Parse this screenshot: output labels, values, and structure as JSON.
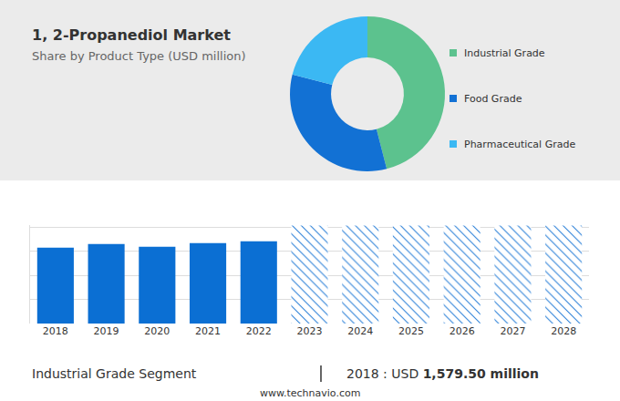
{
  "title": "1, 2-Propanediol Market",
  "subtitle": "Share by Product Type (USD million)",
  "chart_data": [
    {
      "type": "donut",
      "categories": [
        "Industrial Grade",
        "Food Grade",
        "Pharmaceutical Grade"
      ],
      "values": [
        46,
        33,
        21
      ],
      "colors": [
        "#5cc28e",
        "#1271d4",
        "#3bb8f3"
      ]
    },
    {
      "type": "bar",
      "categories": [
        "2018",
        "2019",
        "2020",
        "2021",
        "2022",
        "2023",
        "2024",
        "2025",
        "2026",
        "2027",
        "2028"
      ],
      "series": [
        {
          "color": "#0b6fd3",
          "values": [
            1579.5,
            1656,
            1598,
            1675,
            1713,
            null,
            null,
            null,
            null,
            null,
            null
          ]
        },
        {
          "color": "#2a7fd8",
          "marker": "hatched",
          "values": [
            null,
            null,
            null,
            null,
            null,
            2040,
            2040,
            2040,
            2040,
            2040,
            2040
          ]
        }
      ],
      "ylim": [
        0,
        2050
      ],
      "yticks": [
        0,
        500,
        1000,
        1500,
        2000
      ],
      "grid": true,
      "tick_labels": "x"
    }
  ],
  "footer": {
    "segment": "Industrial Grade Segment",
    "year_label": "2018 : USD",
    "value": "1,579.50 million",
    "website": "www.technavio.com"
  }
}
